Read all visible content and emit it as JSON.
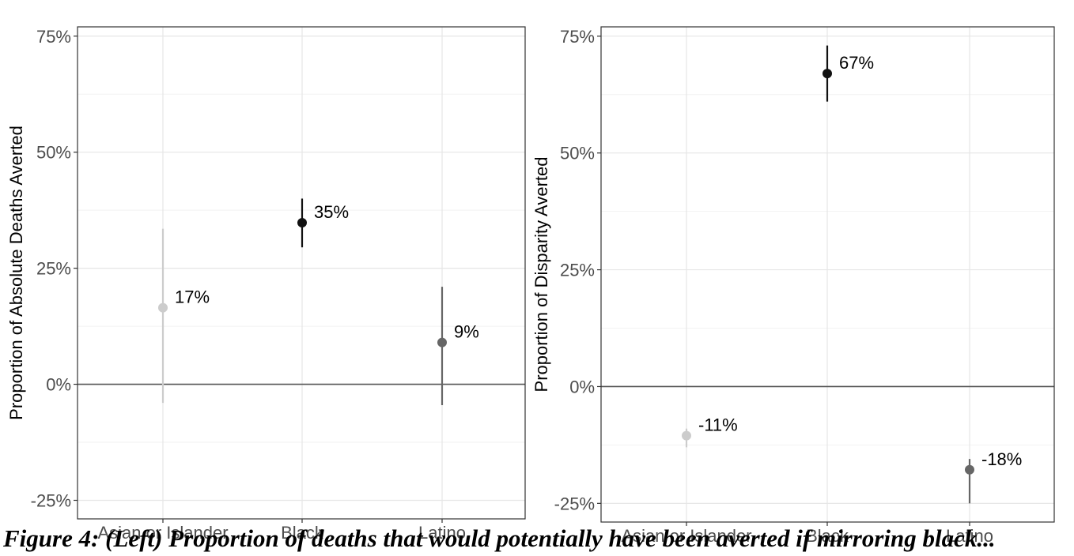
{
  "chart_data": [
    {
      "type": "scatter",
      "title": "",
      "xlabel": "",
      "ylabel": "Proportion of Absolute Deaths Averted",
      "ylim": [
        -0.29,
        0.77
      ],
      "y_ticks": [
        -0.25,
        0,
        0.25,
        0.5,
        0.75
      ],
      "y_tick_labels": [
        "-25%",
        "0%",
        "25%",
        "50%",
        "75%"
      ],
      "categories": [
        "Asian or Islander",
        "Black",
        "Latino"
      ],
      "points": [
        {
          "category": "Asian or Islander",
          "y": 0.165,
          "low": -0.04,
          "high": 0.335,
          "label": "17%",
          "color": "#cccccc"
        },
        {
          "category": "Black",
          "y": 0.348,
          "low": 0.295,
          "high": 0.4,
          "label": "35%",
          "color": "#111111"
        },
        {
          "category": "Latino",
          "y": 0.09,
          "low": -0.045,
          "high": 0.21,
          "label": "9%",
          "color": "#666666"
        }
      ],
      "grid": true,
      "reference_line": 0
    },
    {
      "type": "scatter",
      "title": "",
      "xlabel": "",
      "ylabel": "Proportion of Disparity Averted",
      "ylim": [
        -0.29,
        0.77
      ],
      "y_ticks": [
        -0.25,
        0,
        0.25,
        0.5,
        0.75
      ],
      "y_tick_labels": [
        "-25%",
        "0%",
        "25%",
        "50%",
        "75%"
      ],
      "categories": [
        "Asian or Islander",
        "Black",
        "Latino"
      ],
      "points": [
        {
          "category": "Asian or Islander",
          "y": -0.105,
          "low": -0.13,
          "high": -0.09,
          "label": "-11%",
          "color": "#cccccc"
        },
        {
          "category": "Black",
          "y": 0.67,
          "low": 0.61,
          "high": 0.73,
          "label": "67%",
          "color": "#111111"
        },
        {
          "category": "Latino",
          "y": -0.178,
          "low": -0.25,
          "high": -0.155,
          "label": "-18%",
          "color": "#666666"
        }
      ],
      "grid": true,
      "reference_line": 0
    }
  ],
  "caption": "Figure 4: (Left) Proportion of deaths that would potentially have been averted if mirroring black..."
}
